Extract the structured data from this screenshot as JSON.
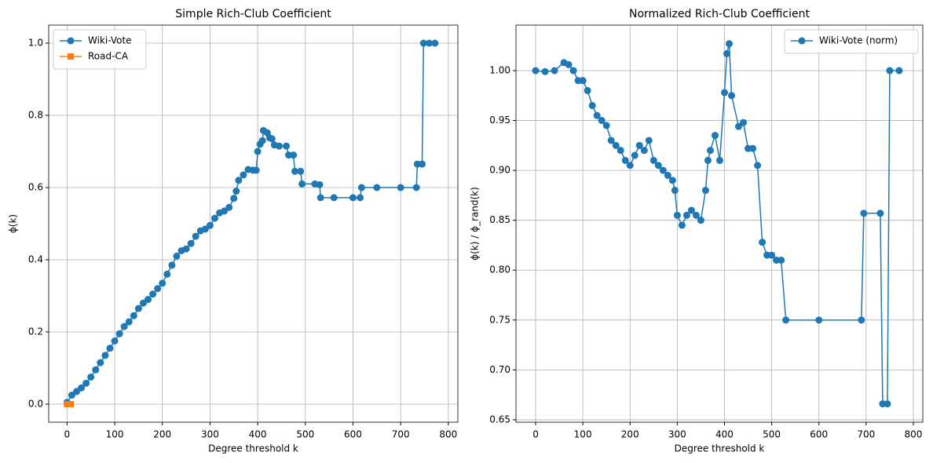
{
  "chart_data": [
    {
      "type": "line",
      "title": "Simple Rich-Club Coefficient",
      "x_label": "Degree threshold k",
      "y_label": "ϕ(k)",
      "xlim": [
        -38.5,
        820
      ],
      "ylim": [
        -0.05,
        1.05
      ],
      "xticks": [
        0,
        100,
        200,
        300,
        400,
        500,
        600,
        700,
        800
      ],
      "yticks": [
        {
          "value": 0,
          "label": "0.0"
        },
        0.2,
        0.4,
        0.6,
        0.8,
        {
          "value": 1,
          "label": "1.0"
        }
      ],
      "grid": true,
      "legend": "upper left",
      "series": [
        {
          "name": "Wiki-Vote",
          "color": "#1f77b4",
          "marker": "circle",
          "x": [
            0,
            10,
            20,
            30,
            40,
            50,
            60,
            70,
            80,
            90,
            100,
            110,
            120,
            130,
            140,
            150,
            160,
            170,
            180,
            190,
            200,
            210,
            220,
            230,
            240,
            250,
            260,
            270,
            280,
            290,
            300,
            310,
            320,
            330,
            340,
            350,
            355,
            360,
            370,
            380,
            390,
            397,
            400,
            405,
            410,
            412,
            420,
            425,
            430,
            435,
            445,
            460,
            465,
            475,
            478,
            490,
            493,
            520,
            530,
            532,
            560,
            600,
            615,
            618,
            650,
            700,
            733,
            735,
            745,
            748,
            760,
            772
          ],
          "values": [
            0.005,
            0.025,
            0.035,
            0.045,
            0.058,
            0.075,
            0.095,
            0.115,
            0.135,
            0.155,
            0.175,
            0.195,
            0.215,
            0.228,
            0.245,
            0.265,
            0.28,
            0.29,
            0.305,
            0.32,
            0.335,
            0.36,
            0.385,
            0.41,
            0.425,
            0.43,
            0.445,
            0.465,
            0.48,
            0.485,
            0.495,
            0.515,
            0.53,
            0.535,
            0.545,
            0.57,
            0.59,
            0.62,
            0.635,
            0.65,
            0.648,
            0.648,
            0.7,
            0.72,
            0.73,
            0.758,
            0.752,
            0.738,
            0.735,
            0.718,
            0.715,
            0.715,
            0.69,
            0.69,
            0.645,
            0.645,
            0.61,
            0.61,
            0.608,
            0.572,
            0.572,
            0.572,
            0.572,
            0.6,
            0.6,
            0.6,
            0.6,
            0.665,
            0.665,
            1.0,
            1.0,
            1.0
          ]
        },
        {
          "name": "Road-CA",
          "color": "#ff7f0e",
          "marker": "square",
          "x": [
            0,
            1,
            2,
            3,
            4,
            5,
            6,
            7,
            8
          ],
          "values": [
            0,
            0,
            0,
            0,
            0,
            0,
            0,
            0,
            0
          ]
        }
      ]
    },
    {
      "type": "line",
      "title": "Normalized Rich-Club Coefficient",
      "x_label": "Degree threshold k",
      "y_label": "ϕ(k) / ϕ_rand(k)",
      "xlim": [
        -41.6,
        820
      ],
      "ylim": [
        0.6476,
        1.0456
      ],
      "xticks": [
        0,
        100,
        200,
        300,
        400,
        500,
        600,
        700,
        800
      ],
      "yticks": [
        0.65,
        {
          "value": 0.7,
          "label": "0.70"
        },
        0.75,
        {
          "value": 0.8,
          "label": "0.80"
        },
        0.85,
        {
          "value": 0.9,
          "label": "0.90"
        },
        0.95,
        {
          "value": 1,
          "label": "1.00"
        }
      ],
      "grid": true,
      "legend": "upper right",
      "series": [
        {
          "name": "Wiki-Vote (norm)",
          "color": "#1f77b4",
          "marker": "circle",
          "x": [
            0,
            20,
            40,
            60,
            70,
            80,
            90,
            100,
            110,
            120,
            130,
            140,
            150,
            160,
            170,
            180,
            190,
            200,
            210,
            220,
            230,
            240,
            250,
            260,
            270,
            280,
            290,
            295,
            300,
            310,
            320,
            330,
            340,
            350,
            360,
            365,
            370,
            380,
            390,
            400,
            405,
            410,
            415,
            430,
            440,
            450,
            460,
            470,
            480,
            490,
            500,
            510,
            520,
            530,
            600,
            690,
            695,
            730,
            735,
            745,
            750,
            770
          ],
          "values": [
            1.0,
            0.999,
            1.0,
            1.008,
            1.006,
            1.0,
            0.99,
            0.99,
            0.98,
            0.965,
            0.955,
            0.95,
            0.945,
            0.93,
            0.925,
            0.92,
            0.91,
            0.905,
            0.915,
            0.925,
            0.92,
            0.93,
            0.91,
            0.905,
            0.9,
            0.895,
            0.89,
            0.88,
            0.855,
            0.845,
            0.855,
            0.86,
            0.855,
            0.85,
            0.88,
            0.91,
            0.92,
            0.935,
            0.91,
            0.978,
            1.017,
            1.027,
            0.975,
            0.944,
            0.948,
            0.922,
            0.922,
            0.905,
            0.828,
            0.815,
            0.815,
            0.81,
            0.81,
            0.75,
            0.75,
            0.75,
            0.857,
            0.857,
            0.666,
            0.666,
            1.0,
            1.0
          ]
        }
      ]
    }
  ]
}
